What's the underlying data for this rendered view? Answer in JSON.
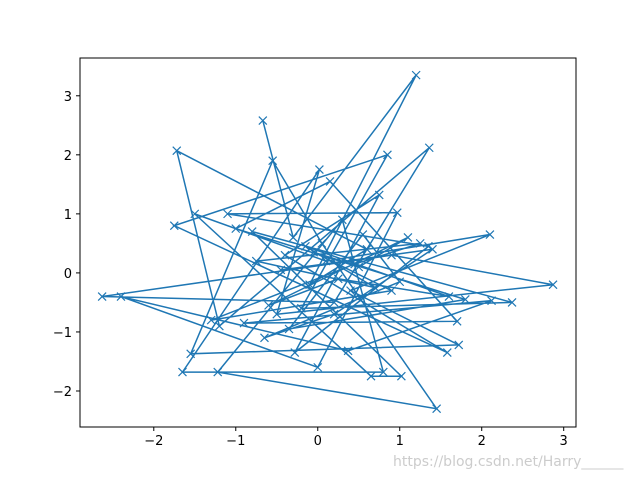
{
  "chart_data": {
    "type": "line",
    "color": "#1f77b4",
    "marker": "x",
    "x": [
      -0.67,
      -0.3,
      1.2,
      -0.1,
      0.6,
      -1.72,
      -1.2,
      1.36,
      0.2,
      -2.63,
      0.9,
      2.87,
      -0.5,
      0.02,
      -1.65,
      0.8,
      0.3,
      -1.22,
      1.45,
      0.05,
      -0.55,
      -1.55,
      1.72,
      0.4,
      2.1,
      0.1,
      -1.5,
      0.65,
      1.02,
      -0.8,
      2.37,
      -0.2,
      0.85,
      -1.75,
      1.58,
      -0.4,
      0.75,
      -0.28,
      1.35,
      -1.1,
      0.97,
      0.0,
      -2.4,
      0.37,
      2.12,
      -0.9,
      1.7,
      0.15,
      -1.0,
      0.5,
      1.1,
      -0.6,
      0.25,
      1.6,
      -0.15,
      0.7,
      -0.75,
      1.25,
      0.45,
      -1.3,
      0.9,
      -0.05,
      1.8,
      -0.35,
      0.55,
      1.0,
      -0.65,
      0.2,
      1.4,
      -0.45
    ],
    "values": [
      2.58,
      0.6,
      3.35,
      -0.2,
      0.4,
      2.07,
      -0.9,
      2.12,
      -0.5,
      -0.4,
      0.3,
      -0.2,
      -0.7,
      1.75,
      -1.68,
      -1.68,
      0.9,
      -1.68,
      -2.3,
      0.5,
      1.9,
      -1.37,
      -1.22,
      -0.3,
      0.65,
      0.2,
      1.0,
      -1.75,
      -1.75,
      0.7,
      -0.5,
      -0.6,
      2.0,
      0.8,
      -1.35,
      0.3,
      1.32,
      -1.35,
      0.45,
      1.0,
      1.02,
      -1.6,
      -0.4,
      -1.32,
      -0.47,
      -0.85,
      -0.82,
      1.55,
      0.75,
      0.1,
      0.6,
      -0.55,
      -0.1,
      -0.4,
      0.45,
      -0.25,
      0.2,
      0.5,
      0.15,
      -0.8,
      -0.3,
      0.35,
      -0.45,
      -0.95,
      0.65,
      -0.15,
      -1.1,
      -0.7,
      0.4,
      0.05
    ],
    "xlim": [
      -2.9,
      3.15
    ],
    "ylim": [
      -2.61,
      3.64
    ],
    "xticks": [
      {
        "value": -2,
        "label": "−2"
      },
      {
        "value": -1,
        "label": "−1"
      },
      0,
      1,
      2,
      3
    ],
    "yticks": [
      {
        "value": -2,
        "label": "−2"
      },
      {
        "value": -1,
        "label": "−1"
      },
      0,
      1,
      2,
      3
    ],
    "watermark": "https://blog.csdn.net/Harry______"
  }
}
